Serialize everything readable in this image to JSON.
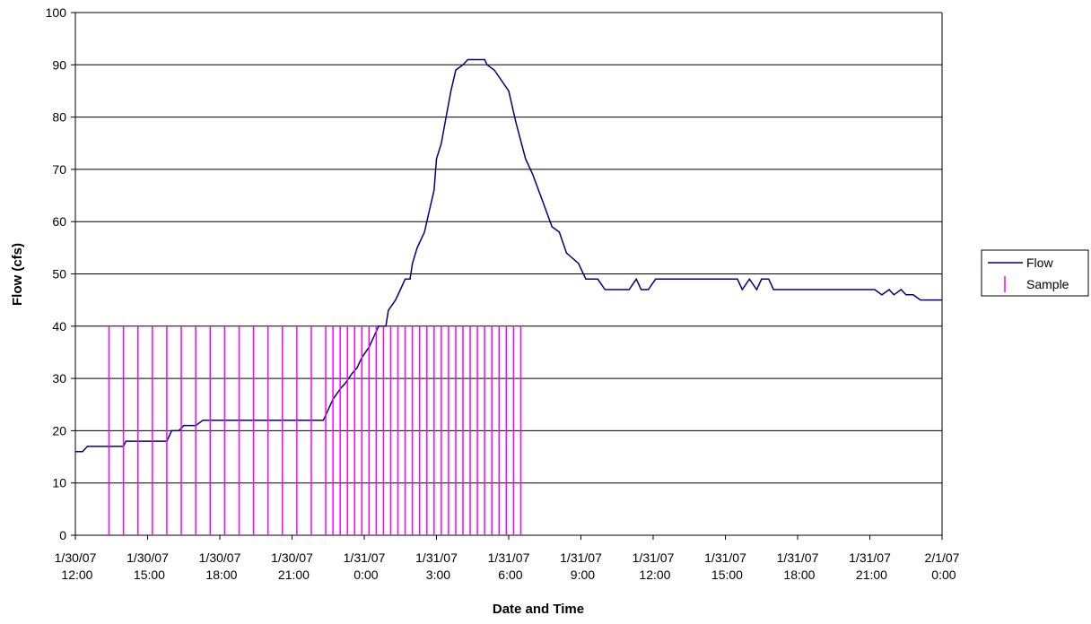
{
  "chart_data": {
    "type": "line",
    "xlabel": "Date and Time",
    "ylabel": "Flow (cfs)",
    "xlim": [
      0,
      36
    ],
    "ylim": [
      0,
      100
    ],
    "xticks": [
      {
        "value": 0,
        "label": "1/30/07 12:00"
      },
      {
        "value": 3,
        "label": "1/30/07 15:00"
      },
      {
        "value": 6,
        "label": "1/30/07 18:00"
      },
      {
        "value": 9,
        "label": "1/30/07 21:00"
      },
      {
        "value": 12,
        "label": "1/31/07 0:00"
      },
      {
        "value": 15,
        "label": "1/31/07 3:00"
      },
      {
        "value": 18,
        "label": "1/31/07 6:00"
      },
      {
        "value": 21,
        "label": "1/31/07 9:00"
      },
      {
        "value": 24,
        "label": "1/31/07 12:00"
      },
      {
        "value": 27,
        "label": "1/31/07 15:00"
      },
      {
        "value": 30,
        "label": "1/31/07 18:00"
      },
      {
        "value": 33,
        "label": "1/31/07 21:00"
      },
      {
        "value": 36,
        "label": "2/1/07 0:00"
      }
    ],
    "yticks": [
      0,
      10,
      20,
      30,
      40,
      50,
      60,
      70,
      80,
      90,
      100
    ],
    "grid": true,
    "legend": "right",
    "series": [
      {
        "name": "Flow",
        "color": "#000080",
        "style": "line",
        "x": [
          0,
          0.3,
          0.5,
          2.0,
          2.1,
          3.8,
          4.0,
          4.3,
          4.5,
          5.0,
          5.3,
          10.3,
          10.5,
          10.7,
          11.0,
          11.2,
          11.5,
          11.7,
          11.9,
          12.2,
          12.4,
          12.6,
          12.9,
          13.0,
          13.3,
          13.5,
          13.7,
          13.9,
          14.0,
          14.2,
          14.5,
          14.7,
          14.9,
          15.0,
          15.2,
          15.4,
          15.6,
          15.8,
          16.1,
          16.3,
          17.0,
          17.1,
          17.4,
          17.7,
          18.0,
          18.3,
          18.7,
          19.0,
          19.4,
          19.8,
          20.1,
          20.4,
          20.9,
          21.2,
          21.7,
          22.0,
          23.0,
          23.3,
          23.5,
          23.8,
          24.1,
          25.2,
          27.1,
          27.5,
          27.7,
          28.0,
          28.3,
          28.5,
          28.8,
          29.0,
          30.4,
          33.2,
          33.5,
          33.8,
          34.0,
          34.3,
          34.5,
          34.8,
          35.1,
          36.0
        ],
        "values": [
          16,
          16,
          17,
          17,
          18,
          18,
          20,
          20,
          21,
          21,
          22,
          22,
          24,
          26,
          28,
          29,
          31,
          32,
          34,
          36,
          38,
          40,
          40,
          43,
          45,
          47,
          49,
          49,
          52,
          55,
          58,
          62,
          66,
          72,
          75,
          80,
          85,
          89,
          90,
          91,
          91,
          90,
          89,
          87,
          85,
          79,
          72,
          69,
          64,
          59,
          58,
          54,
          52,
          49,
          49,
          47,
          47,
          49,
          47,
          47,
          49,
          49,
          49,
          49,
          47,
          49,
          47,
          49,
          49,
          47,
          47,
          47,
          46,
          47,
          46,
          47,
          46,
          46,
          45,
          45
        ]
      },
      {
        "name": "Sample",
        "color": "#ff00ff",
        "style": "stem",
        "x": [
          1.4,
          2.0,
          2.6,
          3.2,
          3.8,
          4.4,
          5.0,
          5.6,
          6.2,
          6.8,
          7.4,
          8.0,
          8.6,
          9.2,
          9.8,
          10.4,
          10.7,
          11.0,
          11.3,
          11.6,
          11.9,
          12.2,
          12.5,
          12.8,
          13.1,
          13.4,
          13.7,
          14.0,
          14.3,
          14.6,
          14.9,
          15.2,
          15.5,
          15.8,
          16.1,
          16.4,
          16.7,
          17.0,
          17.3,
          17.6,
          17.9,
          18.2,
          18.5
        ],
        "values": [
          40,
          40,
          40,
          40,
          40,
          40,
          40,
          40,
          40,
          40,
          40,
          40,
          40,
          40,
          40,
          40,
          40,
          40,
          40,
          40,
          40,
          40,
          40,
          40,
          40,
          40,
          40,
          40,
          40,
          40,
          40,
          40,
          40,
          40,
          40,
          40,
          40,
          40,
          40,
          40,
          40,
          40,
          40
        ]
      }
    ]
  }
}
